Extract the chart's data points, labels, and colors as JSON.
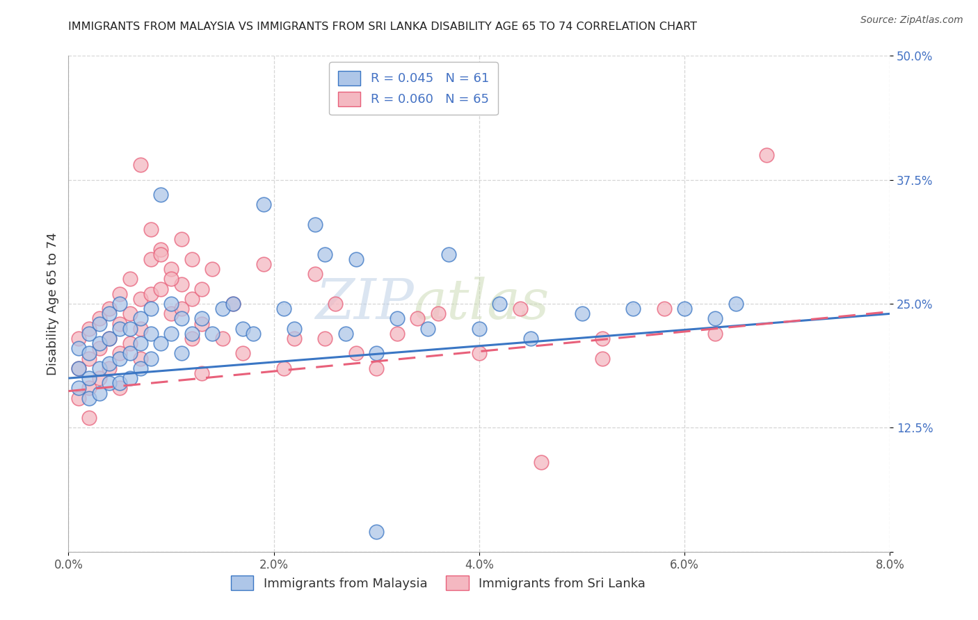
{
  "title": "IMMIGRANTS FROM MALAYSIA VS IMMIGRANTS FROM SRI LANKA DISABILITY AGE 65 TO 74 CORRELATION CHART",
  "source": "Source: ZipAtlas.com",
  "xlabel_label": "Immigrants from Malaysia",
  "xlabel_label2": "Immigrants from Sri Lanka",
  "ylabel": "Disability Age 65 to 74",
  "xlim": [
    0.0,
    0.08
  ],
  "ylim": [
    0.0,
    0.5
  ],
  "xticks": [
    0.0,
    0.02,
    0.04,
    0.06,
    0.08
  ],
  "yticks": [
    0.0,
    0.125,
    0.25,
    0.375,
    0.5
  ],
  "xticklabels": [
    "0.0%",
    "2.0%",
    "4.0%",
    "6.0%",
    "8.0%"
  ],
  "yticklabels": [
    "",
    "12.5%",
    "25.0%",
    "37.5%",
    "50.0%"
  ],
  "R_malaysia": 0.045,
  "N_malaysia": 61,
  "R_srilanka": 0.06,
  "N_srilanka": 65,
  "malaysia_color": "#aec6e8",
  "srilanka_color": "#f4b8c1",
  "malaysia_line_color": "#3a76c4",
  "srilanka_line_color": "#e8607a",
  "grid_color": "#cccccc",
  "watermark_zip": "ZIP",
  "watermark_atlas": "atlas",
  "malaysia_scatter_x": [
    0.001,
    0.001,
    0.001,
    0.002,
    0.002,
    0.002,
    0.002,
    0.003,
    0.003,
    0.003,
    0.003,
    0.004,
    0.004,
    0.004,
    0.004,
    0.005,
    0.005,
    0.005,
    0.005,
    0.006,
    0.006,
    0.006,
    0.007,
    0.007,
    0.007,
    0.008,
    0.008,
    0.008,
    0.009,
    0.009,
    0.01,
    0.01,
    0.011,
    0.011,
    0.012,
    0.013,
    0.014,
    0.015,
    0.016,
    0.017,
    0.018,
    0.019,
    0.021,
    0.022,
    0.024,
    0.025,
    0.027,
    0.028,
    0.03,
    0.032,
    0.035,
    0.037,
    0.04,
    0.042,
    0.045,
    0.05,
    0.055,
    0.06,
    0.063,
    0.065,
    0.03
  ],
  "malaysia_scatter_y": [
    0.205,
    0.185,
    0.165,
    0.22,
    0.2,
    0.175,
    0.155,
    0.23,
    0.21,
    0.185,
    0.16,
    0.24,
    0.215,
    0.19,
    0.17,
    0.25,
    0.225,
    0.195,
    0.17,
    0.225,
    0.2,
    0.175,
    0.235,
    0.21,
    0.185,
    0.245,
    0.22,
    0.195,
    0.36,
    0.21,
    0.25,
    0.22,
    0.235,
    0.2,
    0.22,
    0.235,
    0.22,
    0.245,
    0.25,
    0.225,
    0.22,
    0.35,
    0.245,
    0.225,
    0.33,
    0.3,
    0.22,
    0.295,
    0.2,
    0.235,
    0.225,
    0.3,
    0.225,
    0.25,
    0.215,
    0.24,
    0.245,
    0.245,
    0.235,
    0.25,
    0.02
  ],
  "srilanka_scatter_x": [
    0.001,
    0.001,
    0.001,
    0.002,
    0.002,
    0.002,
    0.002,
    0.003,
    0.003,
    0.003,
    0.004,
    0.004,
    0.004,
    0.005,
    0.005,
    0.005,
    0.005,
    0.006,
    0.006,
    0.006,
    0.007,
    0.007,
    0.007,
    0.008,
    0.008,
    0.009,
    0.009,
    0.01,
    0.01,
    0.011,
    0.011,
    0.012,
    0.012,
    0.013,
    0.013,
    0.014,
    0.015,
    0.016,
    0.017,
    0.019,
    0.021,
    0.022,
    0.024,
    0.025,
    0.026,
    0.028,
    0.03,
    0.032,
    0.034,
    0.036,
    0.04,
    0.044,
    0.046,
    0.052,
    0.058,
    0.063,
    0.068,
    0.052,
    0.007,
    0.008,
    0.009,
    0.01,
    0.011,
    0.012,
    0.013
  ],
  "srilanka_scatter_y": [
    0.215,
    0.185,
    0.155,
    0.225,
    0.195,
    0.165,
    0.135,
    0.235,
    0.205,
    0.175,
    0.245,
    0.215,
    0.185,
    0.26,
    0.23,
    0.2,
    0.165,
    0.275,
    0.24,
    0.21,
    0.255,
    0.225,
    0.195,
    0.295,
    0.26,
    0.305,
    0.265,
    0.285,
    0.24,
    0.315,
    0.27,
    0.295,
    0.255,
    0.265,
    0.23,
    0.285,
    0.215,
    0.25,
    0.2,
    0.29,
    0.185,
    0.215,
    0.28,
    0.215,
    0.25,
    0.2,
    0.185,
    0.22,
    0.235,
    0.24,
    0.2,
    0.245,
    0.09,
    0.215,
    0.245,
    0.22,
    0.4,
    0.195,
    0.39,
    0.325,
    0.3,
    0.275,
    0.245,
    0.215,
    0.18
  ]
}
